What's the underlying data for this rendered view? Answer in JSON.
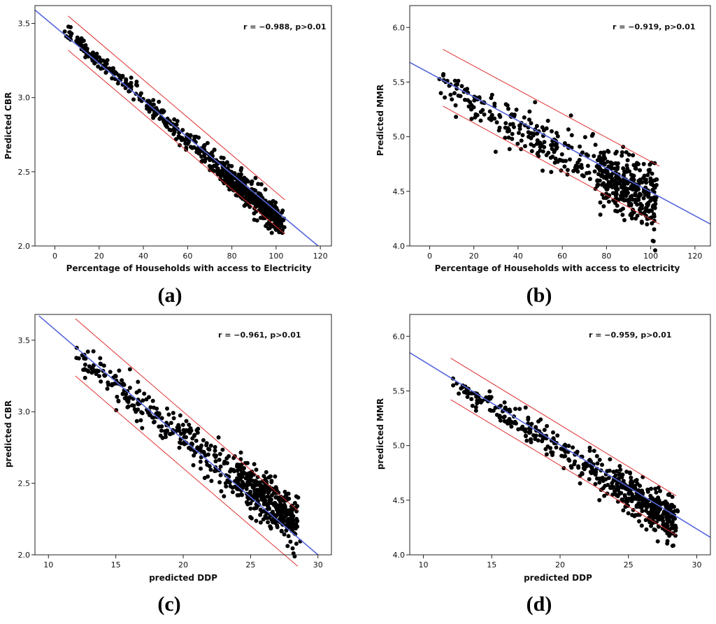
{
  "chart_data": [
    {
      "type": "scatter",
      "panel": "(a)",
      "annotation": "r = −0.988, p>0.01",
      "xlabel": "Percentage of Households with access to Electricity",
      "ylabel": "Predicted CBR",
      "xlim": [
        -9,
        125
      ],
      "ylim": [
        2.0,
        3.62
      ],
      "xticks": [
        0,
        20,
        40,
        60,
        80,
        100,
        120
      ],
      "yticks": [
        2.0,
        2.5,
        3.0,
        3.5
      ],
      "x_tick_labels": [
        "0",
        "20",
        "40",
        "60",
        "80",
        "100",
        "120"
      ],
      "y_tick_labels": [
        "2.0",
        "2.5",
        "3.0",
        "3.5"
      ],
      "fit_line": {
        "x": [
          -9,
          119
        ],
        "y": [
          3.59,
          2.0
        ]
      },
      "confidence_band_upper": {
        "x": [
          6,
          104
        ],
        "y": [
          3.55,
          2.31
        ]
      },
      "confidence_band_lower": {
        "x": [
          6,
          104
        ],
        "y": [
          3.32,
          2.08
        ]
      },
      "points": {
        "x_range": [
          5,
          103
        ],
        "y_start": [
          3.49,
          3.4
        ],
        "y_end": [
          2.25,
          2.05
        ],
        "n": 720
      },
      "series_color": "#000000",
      "fit_color": "#5566dd",
      "band_color": "#e03030"
    },
    {
      "type": "scatter",
      "panel": "(b)",
      "annotation": "r = −0.919, p>0.01",
      "xlabel": "Percentage of Households with access to electricity",
      "ylabel": "Predicted MMR",
      "xlim": [
        -9,
        127
      ],
      "ylim": [
        4.0,
        6.2
      ],
      "xticks": [
        0,
        20,
        40,
        60,
        80,
        100,
        120
      ],
      "yticks": [
        4.0,
        4.5,
        5.0,
        5.5,
        6.0
      ],
      "x_tick_labels": [
        "0",
        "20",
        "40",
        "60",
        "80",
        "100",
        "120"
      ],
      "y_tick_labels": [
        "4.0",
        "4.5",
        "5.0",
        "5.5",
        "6.0"
      ],
      "fit_line": {
        "x": [
          -9,
          127
        ],
        "y": [
          5.68,
          4.2
        ]
      },
      "confidence_band_upper": {
        "x": [
          6,
          104
        ],
        "y": [
          5.8,
          4.73
        ]
      },
      "confidence_band_lower": {
        "x": [
          6,
          104
        ],
        "y": [
          5.28,
          4.2
        ]
      },
      "points": {
        "x_range": [
          5,
          103
        ],
        "y_start": [
          5.6,
          5.3
        ],
        "y_end": [
          4.7,
          4.08
        ],
        "n": 560
      },
      "series_color": "#000000",
      "fit_color": "#5566dd",
      "band_color": "#e03030"
    },
    {
      "type": "scatter",
      "panel": "(c)",
      "annotation": "r = −0.961, p>0.01",
      "xlabel": "predicted DDP",
      "ylabel": "predicted CBR",
      "xlim": [
        9,
        31
      ],
      "ylim": [
        2.0,
        3.68
      ],
      "xticks": [
        10,
        15,
        20,
        25,
        30
      ],
      "yticks": [
        2.0,
        2.5,
        3.0,
        3.5
      ],
      "x_tick_labels": [
        "10",
        "15",
        "20",
        "25",
        "30"
      ],
      "y_tick_labels": [
        "2.0",
        "2.5",
        "3.0",
        "3.5"
      ],
      "fit_line": {
        "x": [
          9.3,
          30
        ],
        "y": [
          3.67,
          2.0
        ]
      },
      "confidence_band_upper": {
        "x": [
          12,
          28.5
        ],
        "y": [
          3.65,
          2.31
        ]
      },
      "confidence_band_lower": {
        "x": [
          12,
          28.5
        ],
        "y": [
          3.25,
          1.92
        ]
      },
      "points": {
        "x_range": [
          12,
          28.5
        ],
        "y_start": [
          3.49,
          3.3
        ],
        "y_end": [
          2.4,
          2.05
        ],
        "n": 640
      },
      "series_color": "#000000",
      "fit_color": "#5566dd",
      "band_color": "#e03030"
    },
    {
      "type": "scatter",
      "panel": "(d)",
      "annotation": "r = −0.959, p>0.01",
      "xlabel": "predicted DDP",
      "ylabel": "predicted MMR",
      "xlim": [
        9,
        31
      ],
      "ylim": [
        4.0,
        6.2
      ],
      "xticks": [
        10,
        15,
        20,
        25,
        30
      ],
      "yticks": [
        4.0,
        4.5,
        5.0,
        5.5,
        6.0
      ],
      "x_tick_labels": [
        "10",
        "15",
        "20",
        "25",
        "30"
      ],
      "y_tick_labels": [
        "4.0",
        "4.5",
        "5.0",
        "5.5",
        "6.0"
      ],
      "fit_line": {
        "x": [
          9,
          31
        ],
        "y": [
          5.85,
          4.16
        ]
      },
      "confidence_band_upper": {
        "x": [
          12,
          28.5
        ],
        "y": [
          5.8,
          4.54
        ]
      },
      "confidence_band_lower": {
        "x": [
          12,
          28.5
        ],
        "y": [
          5.42,
          4.18
        ]
      },
      "points": {
        "x_range": [
          12,
          28.5
        ],
        "y_start": [
          5.7,
          5.5
        ],
        "y_end": [
          4.5,
          4.07
        ],
        "n": 560
      },
      "series_color": "#000000",
      "fit_color": "#5566dd",
      "band_color": "#e03030"
    }
  ]
}
